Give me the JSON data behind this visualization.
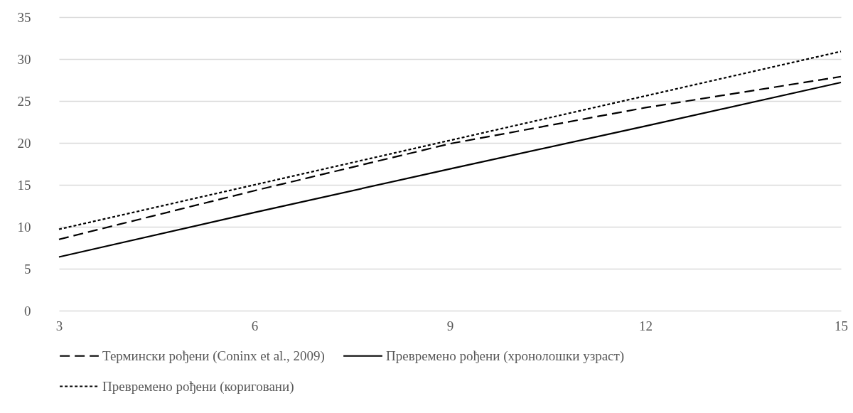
{
  "chart_data": {
    "type": "line",
    "x": [
      3,
      6,
      9,
      12,
      15
    ],
    "xlim": [
      3,
      15
    ],
    "xticks": [
      3,
      6,
      9,
      12,
      15
    ],
    "ylim": [
      0,
      35
    ],
    "yticks": [
      0,
      5,
      10,
      15,
      20,
      25,
      30,
      35
    ],
    "grid": "y",
    "legend": "bottom",
    "marker": "none",
    "series": [
      {
        "name": "Термински рођени (Coninx et al., 2009)",
        "color": "#000000",
        "line_style": "dashed",
        "values": [
          8.5,
          14.3,
          19.9,
          24.2,
          27.9
        ]
      },
      {
        "name": "Превремено рођени (хронолошки узраст)",
        "color": "#000000",
        "line_style": "solid",
        "values": [
          6.4,
          11.7,
          16.9,
          22.0,
          27.2
        ]
      },
      {
        "name": "Превремено рођени (кориговани)",
        "color": "#000000",
        "line_style": "dotted",
        "values": [
          9.7,
          15.0,
          20.3,
          25.6,
          30.9
        ]
      }
    ]
  }
}
